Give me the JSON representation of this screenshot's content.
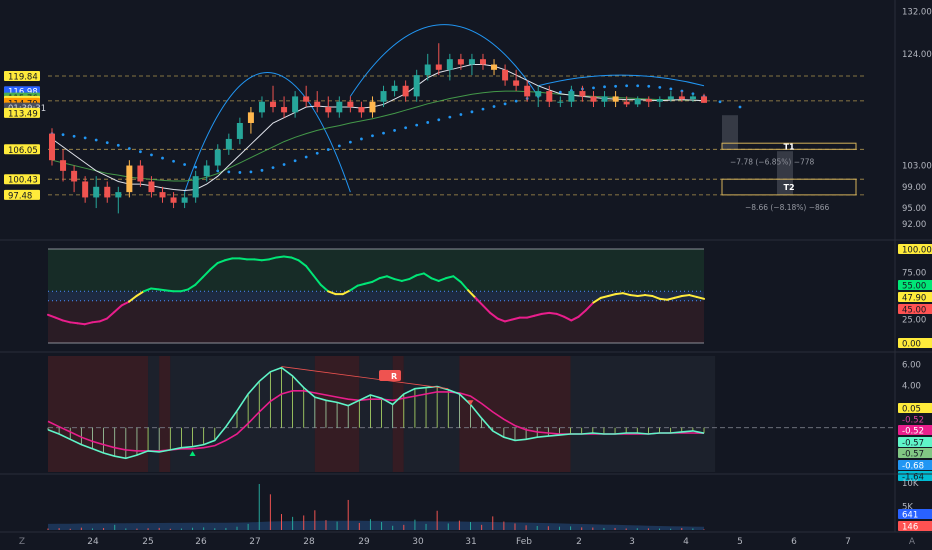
{
  "chart_data": [
    {
      "type": "candlestick",
      "panel": "price",
      "y_ticks": [
        "132.00",
        "124.00",
        "103.00",
        "99.00",
        "95.00",
        "92.00"
      ],
      "ylim": [
        90.5,
        133
      ],
      "x_ticks": [
        "24",
        "25",
        "26",
        "27",
        "28",
        "29",
        "30",
        "31",
        "Feb",
        "2",
        "3",
        "4",
        "5",
        "6",
        "7"
      ],
      "price_badges": [
        {
          "label": "119.84",
          "value": 119.84,
          "color": "#ffeb3b",
          "text_color": "#131722"
        },
        {
          "label": "116.98",
          "value": 116.98,
          "color": "#2962ff",
          "text_color": "#ffffff"
        },
        {
          "label": "115.76",
          "value": 115.76,
          "color": "#4caf50",
          "text_color": "#131722"
        },
        {
          "label": "115.16",
          "value": 115.16,
          "color": "#ffeb3b",
          "text_color": "#131722"
        },
        {
          "label": "114.79",
          "value": 114.79,
          "color": "#ff9800",
          "text_color": "#131722"
        },
        {
          "label": "01:39:31",
          "value": 113.9,
          "color": "#4a4e5a",
          "text_color": "#d1d4dc"
        },
        {
          "label": "113.49",
          "value": 112.9,
          "color": "#ffeb3b",
          "text_color": "#131722"
        },
        {
          "label": "106.05",
          "value": 106.05,
          "color": "#ffeb3b",
          "text_color": "#131722"
        },
        {
          "label": "100.43",
          "value": 100.43,
          "color": "#ffeb3b",
          "text_color": "#131722"
        },
        {
          "label": "97.48",
          "value": 97.48,
          "color": "#ffeb3b",
          "text_color": "#131722"
        }
      ],
      "levels": [
        119.84,
        115.16,
        106.05,
        100.43,
        97.48
      ],
      "targets": [
        {
          "label": "T1",
          "top": 107.2,
          "bottom": 106.05,
          "note": "−7.78 (−6.85%) −778"
        },
        {
          "label": "T2",
          "top": 100.43,
          "bottom": 97.48,
          "note": "−8.66 (−8.18%) −866"
        }
      ],
      "candles": [
        [
          109,
          110,
          103,
          104
        ],
        [
          104,
          106,
          100,
          102
        ],
        [
          102,
          103,
          98,
          100
        ],
        [
          100,
          101,
          96,
          97
        ],
        [
          97,
          101,
          95,
          99
        ],
        [
          99,
          100,
          96,
          97
        ],
        [
          97,
          99,
          94,
          98
        ],
        [
          98,
          104,
          97,
          103
        ],
        [
          103,
          104,
          99,
          100
        ],
        [
          100,
          101,
          97,
          98
        ],
        [
          98,
          99,
          96,
          97
        ],
        [
          97,
          98,
          95,
          96
        ],
        [
          96,
          98,
          95,
          97
        ],
        [
          97,
          102,
          96,
          101
        ],
        [
          101,
          104,
          100,
          103
        ],
        [
          103,
          107,
          102,
          106
        ],
        [
          106,
          109,
          105,
          108
        ],
        [
          108,
          112,
          107,
          111
        ],
        [
          111,
          114,
          109,
          113
        ],
        [
          113,
          116,
          112,
          115
        ],
        [
          115,
          118,
          113,
          114
        ],
        [
          114,
          116,
          112,
          113
        ],
        [
          113,
          117,
          112,
          116
        ],
        [
          116,
          118,
          114,
          115
        ],
        [
          115,
          117,
          113,
          114
        ],
        [
          114,
          116,
          112,
          113
        ],
        [
          113,
          116,
          112,
          115
        ],
        [
          115,
          116,
          113,
          114
        ],
        [
          114,
          115,
          112,
          113
        ],
        [
          113,
          116,
          112,
          115
        ],
        [
          115,
          118,
          114,
          117
        ],
        [
          117,
          119,
          116,
          118
        ],
        [
          118,
          119,
          115,
          116
        ],
        [
          116,
          121,
          115,
          120
        ],
        [
          120,
          124,
          119,
          122
        ],
        [
          122,
          126,
          120,
          121
        ],
        [
          121,
          124,
          119,
          123
        ],
        [
          123,
          124,
          121,
          122
        ],
        [
          122,
          124,
          120,
          123
        ],
        [
          123,
          124,
          121,
          122
        ],
        [
          122,
          123,
          120,
          121
        ],
        [
          121,
          122,
          118,
          119
        ],
        [
          119,
          121,
          117,
          118
        ],
        [
          118,
          119,
          115,
          116
        ],
        [
          116,
          118,
          114,
          117
        ],
        [
          117,
          118,
          114,
          115
        ],
        [
          115,
          116,
          114,
          115
        ],
        [
          115,
          118,
          114,
          117
        ],
        [
          117,
          118,
          115,
          116
        ],
        [
          116,
          117,
          114,
          115
        ],
        [
          115,
          117,
          114,
          116
        ],
        [
          116,
          117,
          114,
          115
        ],
        [
          115,
          116,
          114,
          114.5
        ],
        [
          114.5,
          116,
          114,
          115.5
        ],
        [
          115.5,
          116,
          114,
          115
        ],
        [
          115,
          116,
          114,
          115.5
        ],
        [
          115.5,
          117,
          115,
          116
        ],
        [
          116,
          117,
          115,
          115.5
        ],
        [
          115.5,
          116.5,
          115,
          116
        ],
        [
          116,
          116.5,
          114.79,
          114.79
        ]
      ],
      "sma_fast": [
        108,
        106.5,
        105,
        103.5,
        102,
        101,
        100,
        99.5,
        99.5,
        99.2,
        98.8,
        98.5,
        98.3,
        98.5,
        99.5,
        101,
        103,
        105,
        107,
        109,
        111,
        112,
        113,
        114,
        114.2,
        114,
        114,
        114,
        113.8,
        114,
        114.5,
        115.5,
        116.5,
        118,
        119.5,
        120.5,
        121,
        121.5,
        122,
        122,
        121.7,
        121,
        120,
        119,
        118,
        117.2,
        116.5,
        116.2,
        116,
        115.8,
        115.6,
        115.5,
        115.4,
        115.4,
        115.3,
        115.2,
        115.3,
        115.4,
        115.3,
        115.2
      ],
      "sma_slow": [
        104,
        103.5,
        103,
        102.5,
        102,
        101.5,
        101.2,
        100.8,
        100.6,
        100.4,
        100.2,
        100.1,
        100.1,
        100.3,
        100.8,
        101.5,
        102.5,
        103.5,
        104.5,
        105.5,
        106.5,
        107.5,
        108.3,
        109,
        109.6,
        110.1,
        110.5,
        111,
        111.4,
        111.8,
        112.3,
        112.8,
        113.4,
        114,
        114.6,
        115.1,
        115.6,
        116,
        116.4,
        116.7,
        116.9,
        117,
        117,
        116.9,
        116.8,
        116.6,
        116.4,
        116.3,
        116.1,
        116,
        115.9,
        115.8,
        115.7,
        115.6,
        115.5,
        115.4,
        115.4,
        115.3,
        115.3,
        115.2
      ],
      "psar": [
        109,
        108.8,
        108.5,
        108.2,
        107.8,
        107.3,
        106.8,
        106.2,
        105.6,
        105,
        104.4,
        103.8,
        103.2,
        102.7,
        102.3,
        102,
        101.8,
        101.7,
        101.8,
        102.1,
        102.6,
        103.2,
        103.9,
        104.6,
        105.3,
        106,
        106.7,
        107.4,
        108,
        108.6,
        109.1,
        109.6,
        110.1,
        110.6,
        111.1,
        111.6,
        112.1,
        112.6,
        113.1,
        113.6,
        114.1,
        114.6,
        115.1,
        115.6,
        116,
        116.4,
        116.8,
        117.1,
        117.4,
        117.6,
        117.8,
        117.9,
        118,
        118,
        117.9,
        117.7,
        117.4,
        117,
        116.5,
        116
      ],
      "arcs": [
        {
          "from": 0.2,
          "to": 0.45,
          "peak": 120.5
        },
        {
          "from": 0.45,
          "to": 0.75,
          "peak": 129.5
        },
        {
          "from": 0.75,
          "to": 1.0,
          "peak": 120
        }
      ]
    },
    {
      "type": "line",
      "panel": "rsi",
      "y_ticks": [
        "100.00",
        "75.00",
        "25.00",
        "0.00"
      ],
      "ylim": [
        0,
        100
      ],
      "badges": [
        {
          "label": "55.00",
          "value": 55,
          "color": "#00e676",
          "text_color": "#131722"
        },
        {
          "label": "47.90",
          "value": 47.9,
          "color": "#ffeb3b",
          "text_color": "#131722"
        },
        {
          "label": "45.00",
          "value": 45,
          "color": "#ff5252",
          "text_color": "#131722"
        }
      ],
      "values": [
        30,
        27,
        24,
        22,
        21,
        20,
        22,
        23,
        26,
        33,
        40,
        44,
        50,
        55,
        58,
        57,
        56,
        55,
        55,
        57,
        62,
        70,
        78,
        85,
        88,
        90,
        90,
        89,
        89,
        88,
        89,
        91,
        92,
        91,
        88,
        82,
        72,
        62,
        55,
        52,
        52,
        56,
        61,
        63,
        65,
        69,
        71,
        68,
        66,
        68,
        72,
        74,
        69,
        66,
        69,
        71,
        65,
        56,
        48,
        40,
        32,
        26,
        23,
        25,
        27,
        27,
        29,
        31,
        32,
        31,
        28,
        24,
        28,
        35,
        43,
        48,
        50,
        52,
        53,
        51,
        50,
        51,
        50,
        47,
        46,
        48,
        50,
        51,
        49,
        47
      ]
    },
    {
      "type": "line",
      "panel": "macd",
      "y_ticks": [
        "6.00",
        "4.00",
        "2.00"
      ],
      "ylim": [
        -4.2,
        6.8
      ],
      "badges": [
        {
          "label": "0.05",
          "value": 0.05,
          "color": "#ffeb3b",
          "text_color": "#131722"
        },
        {
          "label": "-0.52",
          "value": -0.52,
          "color": "#131722",
          "text_color": "#e040a0"
        },
        {
          "label": "-0.52",
          "value": -0.52,
          "color": "#e91e8c",
          "text_color": "#ffffff"
        },
        {
          "label": "-0.57",
          "value": -0.57,
          "color": "#5ff5c8",
          "text_color": "#131722"
        },
        {
          "label": "-0.57",
          "value": -0.57,
          "color": "#81c784",
          "text_color": "#131722"
        },
        {
          "label": "-0.68",
          "value": -0.68,
          "color": "#2196f3",
          "text_color": "#ffffff"
        },
        {
          "label": "-1.64",
          "value": -1.64,
          "color": "#00bcd4",
          "text_color": "#131722"
        }
      ],
      "signal_label": "R",
      "macd": [
        -0.2,
        -0.6,
        -1.1,
        -1.6,
        -2,
        -2.4,
        -2.7,
        -2.9,
        -2.6,
        -2.2,
        -2.3,
        -2.1,
        -1.9,
        -1.8,
        -1.6,
        -1.2,
        0.1,
        1.6,
        3.2,
        4.4,
        5.3,
        5.7,
        4.9,
        3.8,
        2.9,
        2.6,
        2.4,
        2.1,
        2.6,
        3.1,
        2.8,
        2.2,
        3.2,
        3.7,
        3.8,
        3.9,
        3.6,
        3.2,
        2.2,
        0.9,
        -0.3,
        -0.9,
        -1.2,
        -1.1,
        -0.9,
        -0.8,
        -0.7,
        -0.6,
        -0.6,
        -0.5,
        -0.6,
        -0.6,
        -0.5,
        -0.5,
        -0.6,
        -0.5,
        -0.5,
        -0.4,
        -0.3,
        -0.52
      ],
      "signal": [
        0.6,
        0.1,
        -0.4,
        -0.9,
        -1.3,
        -1.6,
        -1.9,
        -2.1,
        -2.2,
        -2.2,
        -2.2,
        -2.1,
        -2,
        -2,
        -1.9,
        -1.7,
        -1.2,
        -0.6,
        0.4,
        1.5,
        2.5,
        3.2,
        3.5,
        3.5,
        3.3,
        3.1,
        2.9,
        2.7,
        2.6,
        2.7,
        2.7,
        2.6,
        2.8,
        3,
        3.2,
        3.4,
        3.4,
        3.3,
        3,
        2.3,
        1.5,
        0.8,
        0.2,
        -0.2,
        -0.4,
        -0.5,
        -0.6,
        -0.6,
        -0.6,
        -0.6,
        -0.6,
        -0.6,
        -0.6,
        -0.6,
        -0.6,
        -0.5,
        -0.5,
        -0.5,
        -0.5,
        -0.52
      ]
    },
    {
      "type": "bar",
      "panel": "volume",
      "y_ticks": [
        "10K",
        "5K"
      ],
      "ylim": [
        0,
        11500
      ],
      "badges": [
        {
          "label": "641",
          "value": 641,
          "color": "#2962ff",
          "text_color": "#ffffff"
        },
        {
          "label": "146",
          "value": 146,
          "color": "#ff5252",
          "text_color": "#ffffff"
        }
      ],
      "values": [
        320,
        400,
        260,
        500,
        340,
        420,
        1100,
        350,
        300,
        380,
        450,
        260,
        320,
        480,
        560,
        380,
        440,
        700,
        1300,
        9800,
        7600,
        3400,
        2800,
        3100,
        4200,
        2100,
        1800,
        6400,
        1500,
        2300,
        1700,
        900,
        1100,
        2200,
        1300,
        4100,
        1400,
        2000,
        1700,
        1100,
        2900,
        1800,
        1400,
        1000,
        850,
        800,
        700,
        760,
        560,
        520,
        430,
        430,
        330,
        380,
        350,
        300,
        280,
        420,
        330,
        146
      ],
      "volume_ma": [
        1300,
        1320,
        1350,
        1380,
        1400,
        1420,
        1430,
        1450,
        1470,
        1480,
        1500,
        1510,
        1520,
        1530,
        1540,
        1550,
        1560,
        1580,
        1620,
        1700,
        1800,
        1860,
        1900,
        1920,
        1940,
        1950,
        1955,
        1960,
        1950,
        1940,
        1930,
        1920,
        1900,
        1880,
        1860,
        1840,
        1820,
        1800,
        1770,
        1740,
        1700,
        1660,
        1620,
        1570,
        1520,
        1460,
        1400,
        1340,
        1280,
        1220,
        1160,
        1100,
        1040,
        980,
        920,
        860,
        800,
        760,
        720,
        690
      ]
    }
  ],
  "footer": {
    "left_icon": "Z",
    "right_icon": "A"
  }
}
